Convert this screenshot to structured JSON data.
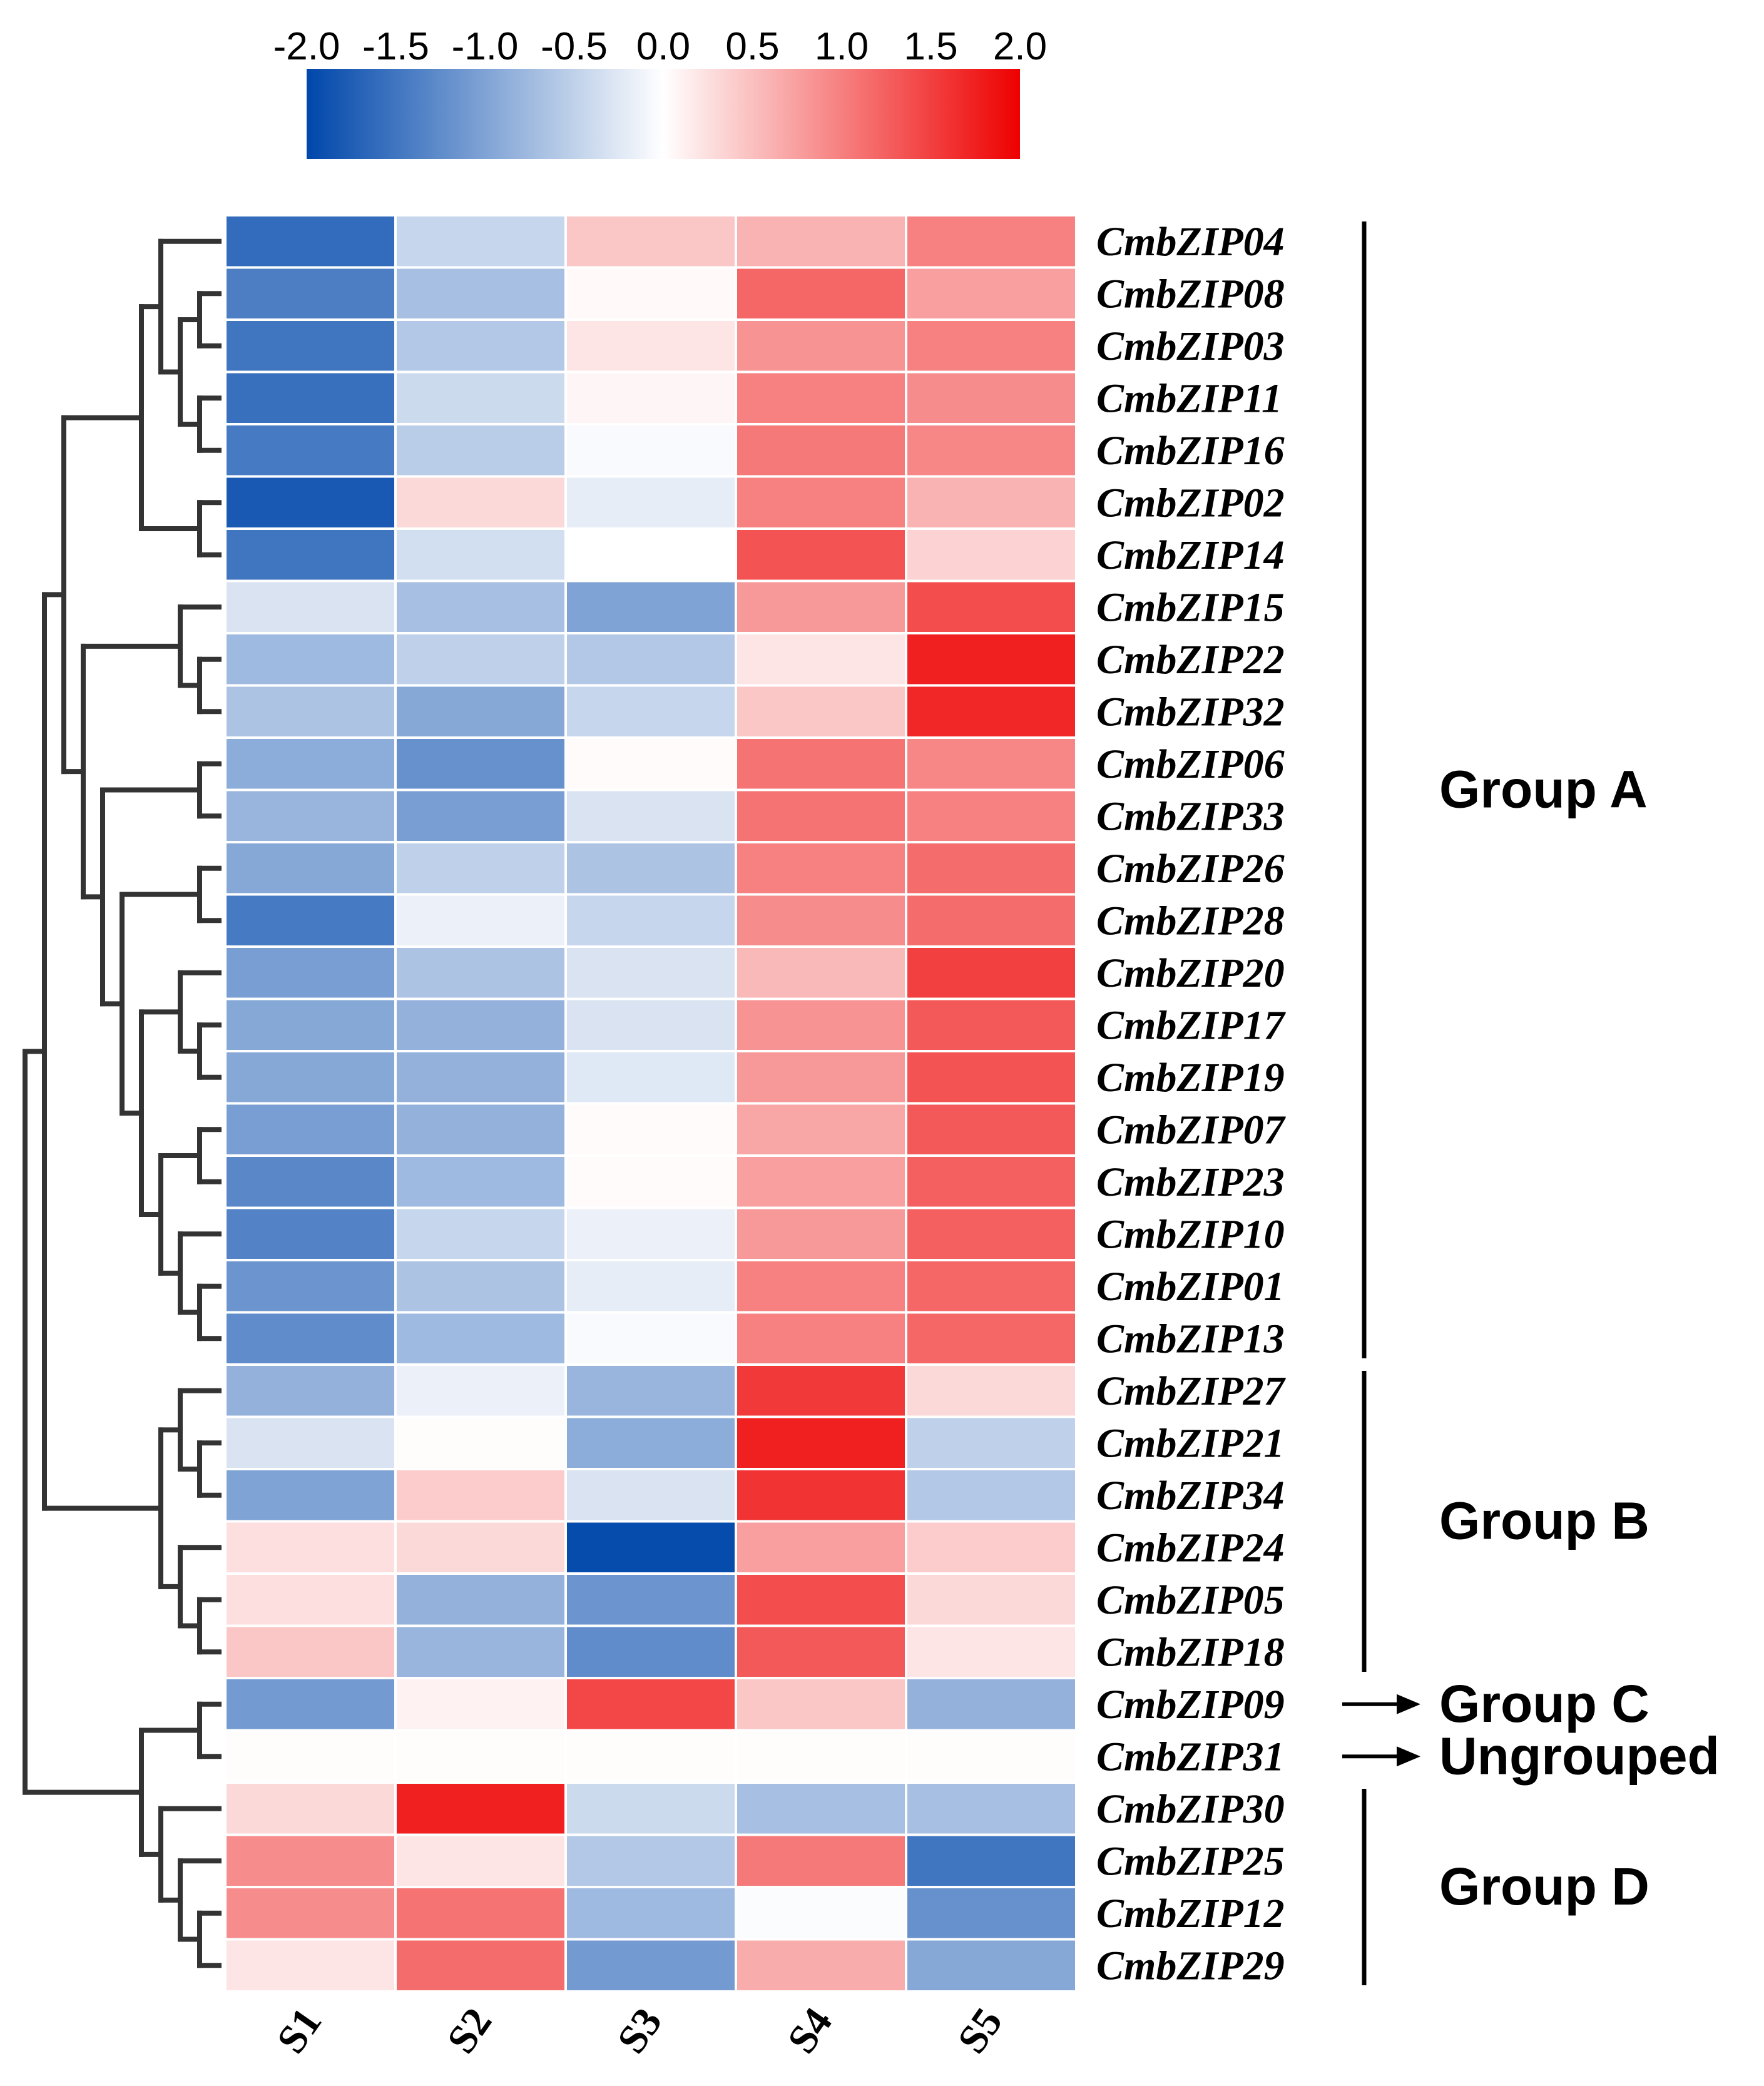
{
  "chart_data": {
    "type": "heatmap",
    "title": "",
    "color_scale": {
      "min": -2.0,
      "max": 2.0,
      "low_color": "#0047AB",
      "mid_color": "#FFFFFF",
      "high_color": "#EE0000",
      "ticks": [
        "-2.0",
        "-1.5",
        "-1.0",
        "-0.5",
        "0.0",
        "0.5",
        "1.0",
        "1.5",
        "2.0"
      ]
    },
    "columns": [
      "S1",
      "S2",
      "S3",
      "S4",
      "S5"
    ],
    "rows": [
      {
        "gene": "CmbZIP04",
        "values": [
          -1.6,
          -0.45,
          0.45,
          0.6,
          1.0
        ]
      },
      {
        "gene": "CmbZIP08",
        "values": [
          -1.4,
          -0.7,
          0.05,
          1.2,
          0.75
        ]
      },
      {
        "gene": "CmbZIP03",
        "values": [
          -1.5,
          -0.6,
          0.2,
          0.85,
          1.0
        ]
      },
      {
        "gene": "CmbZIP11",
        "values": [
          -1.55,
          -0.4,
          0.07,
          1.0,
          0.9
        ]
      },
      {
        "gene": "CmbZIP16",
        "values": [
          -1.45,
          -0.55,
          -0.05,
          1.05,
          0.95
        ]
      },
      {
        "gene": "CmbZIP02",
        "values": [
          -1.8,
          0.3,
          -0.2,
          1.0,
          0.6
        ]
      },
      {
        "gene": "CmbZIP14",
        "values": [
          -1.5,
          -0.35,
          0.0,
          1.35,
          0.35
        ]
      },
      {
        "gene": "CmbZIP15",
        "values": [
          -0.3,
          -0.7,
          -1.0,
          0.8,
          1.4
        ]
      },
      {
        "gene": "CmbZIP22",
        "values": [
          -0.75,
          -0.5,
          -0.6,
          0.2,
          1.75
        ]
      },
      {
        "gene": "CmbZIP32",
        "values": [
          -0.65,
          -0.95,
          -0.45,
          0.45,
          1.7
        ]
      },
      {
        "gene": "CmbZIP06",
        "values": [
          -0.9,
          -1.2,
          0.03,
          1.1,
          0.95
        ]
      },
      {
        "gene": "CmbZIP33",
        "values": [
          -0.8,
          -1.05,
          -0.3,
          1.1,
          1.0
        ]
      },
      {
        "gene": "CmbZIP26",
        "values": [
          -0.95,
          -0.5,
          -0.65,
          1.0,
          1.15
        ]
      },
      {
        "gene": "CmbZIP28",
        "values": [
          -1.45,
          -0.15,
          -0.45,
          0.9,
          1.15
        ]
      },
      {
        "gene": "CmbZIP20",
        "values": [
          -1.05,
          -0.65,
          -0.3,
          0.55,
          1.5
        ]
      },
      {
        "gene": "CmbZIP17",
        "values": [
          -0.95,
          -0.85,
          -0.3,
          0.85,
          1.3
        ]
      },
      {
        "gene": "CmbZIP19",
        "values": [
          -0.95,
          -0.85,
          -0.25,
          0.8,
          1.35
        ]
      },
      {
        "gene": "CmbZIP07",
        "values": [
          -1.05,
          -0.85,
          0.03,
          0.7,
          1.3
        ]
      },
      {
        "gene": "CmbZIP23",
        "values": [
          -1.3,
          -0.75,
          0.03,
          0.75,
          1.25
        ]
      },
      {
        "gene": "CmbZIP10",
        "values": [
          -1.35,
          -0.45,
          -0.15,
          0.8,
          1.25
        ]
      },
      {
        "gene": "CmbZIP01",
        "values": [
          -1.15,
          -0.65,
          -0.2,
          1.0,
          1.2
        ]
      },
      {
        "gene": "CmbZIP13",
        "values": [
          -1.25,
          -0.75,
          -0.05,
          1.0,
          1.2
        ]
      },
      {
        "gene": "CmbZIP27",
        "values": [
          -0.85,
          -0.15,
          -0.8,
          1.55,
          0.3
        ]
      },
      {
        "gene": "CmbZIP21",
        "values": [
          -0.3,
          0.02,
          -0.9,
          1.75,
          -0.5
        ]
      },
      {
        "gene": "CmbZIP34",
        "values": [
          -1.0,
          0.4,
          -0.3,
          1.6,
          -0.6
        ]
      },
      {
        "gene": "CmbZIP24",
        "values": [
          0.25,
          0.3,
          -1.95,
          0.75,
          0.4
        ]
      },
      {
        "gene": "CmbZIP05",
        "values": [
          0.25,
          -0.85,
          -1.15,
          1.4,
          0.3
        ]
      },
      {
        "gene": "CmbZIP18",
        "values": [
          0.45,
          -0.8,
          -1.25,
          1.3,
          0.2
        ]
      },
      {
        "gene": "CmbZIP09",
        "values": [
          -1.1,
          0.1,
          1.45,
          0.45,
          -0.85
        ]
      },
      {
        "gene": "CmbZIP31",
        "values": [
          0.02,
          0.02,
          0.02,
          0.02,
          0.02
        ]
      },
      {
        "gene": "CmbZIP30",
        "values": [
          0.3,
          1.75,
          -0.4,
          -0.7,
          -0.7
        ]
      },
      {
        "gene": "CmbZIP25",
        "values": [
          0.9,
          0.2,
          -0.6,
          1.05,
          -1.5
        ]
      },
      {
        "gene": "CmbZIP12",
        "values": [
          0.9,
          1.1,
          -0.75,
          -0.03,
          -1.2
        ]
      },
      {
        "gene": "CmbZIP29",
        "values": [
          0.2,
          1.15,
          -1.1,
          0.65,
          -0.95
        ]
      }
    ],
    "groups": [
      {
        "name": "Group A",
        "first_row": 0,
        "last_row": 21,
        "marker": "bracket"
      },
      {
        "name": "Group B",
        "first_row": 22,
        "last_row": 27,
        "marker": "bracket"
      },
      {
        "name": "Group C",
        "first_row": 28,
        "last_row": 28,
        "marker": "arrow"
      },
      {
        "name": "Ungrouped",
        "first_row": 29,
        "last_row": 29,
        "marker": "arrow"
      },
      {
        "name": "Group D",
        "first_row": 30,
        "last_row": 33,
        "marker": "bracket"
      }
    ],
    "dendrogram": {
      "description": "hierarchical clustering of rows",
      "children": [
        [
          [
            [
              [
                0,
                [
                  [
                    1,
                    2
                  ],
                  [
                    3,
                    4
                  ]
                ]
              ],
              [
                5,
                6
              ]
            ],
            [
              [
                7,
                [
                  8,
                  9
                ]
              ],
              [
                [
                  10,
                  11
                ],
                [
                  [
                    12,
                    13
                  ],
                  [
                    [
                      14,
                      [
                        15,
                        16
                      ]
                    ],
                    [
                      [
                        17,
                        18
                      ],
                      [
                        19,
                        [
                          20,
                          21
                        ]
                      ]
                    ]
                  ]
                ]
              ]
            ]
          ],
          [
            [
              22,
              [
                23,
                24
              ]
            ],
            [
              25,
              [
                26,
                27
              ]
            ]
          ]
        ],
        [
          [
            28,
            29
          ],
          [
            30,
            [
              31,
              [
                32,
                33
              ]
            ]
          ]
        ]
      ]
    }
  }
}
